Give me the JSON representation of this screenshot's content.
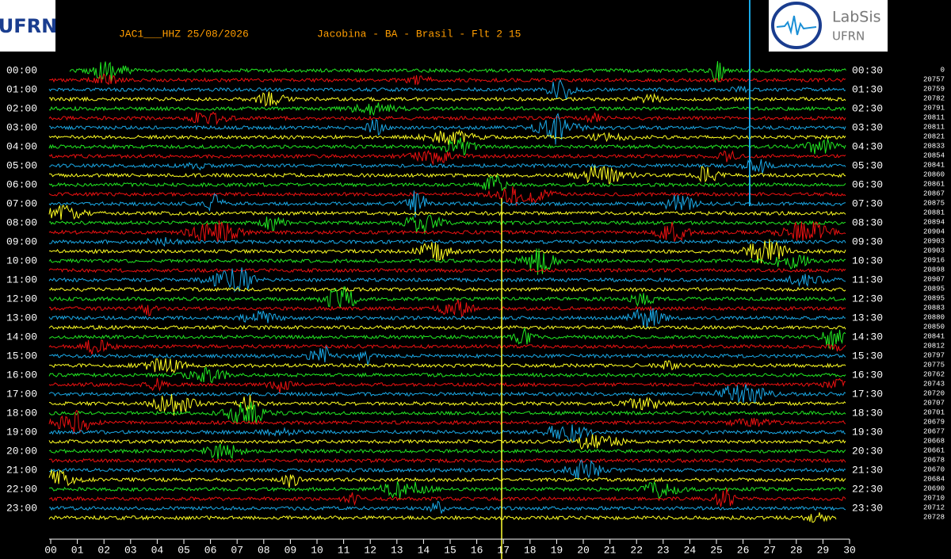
{
  "header": {
    "station": "JAC1___HHZ 25/08/2026",
    "location": "Jacobina - BA - Brasil - Flt 2 15"
  },
  "logos": {
    "left": "UFRN",
    "right_title": "LabSis",
    "right_subtitle": "UFRN"
  },
  "left_labels": [
    "00:00",
    "01:00",
    "02:00",
    "03:00",
    "04:00",
    "05:00",
    "06:00",
    "07:00",
    "08:00",
    "09:00",
    "10:00",
    "11:00",
    "12:00",
    "13:00",
    "14:00",
    "15:00",
    "16:00",
    "17:00",
    "18:00",
    "19:00",
    "20:00",
    "21:00",
    "22:00",
    "23:00"
  ],
  "right_labels": [
    "00:30",
    "01:30",
    "02:30",
    "03:30",
    "04:30",
    "05:30",
    "06:30",
    "07:30",
    "08:30",
    "09:30",
    "10:30",
    "11:30",
    "12:30",
    "13:30",
    "14:30",
    "15:30",
    "16:30",
    "17:30",
    "18:30",
    "19:30",
    "20:30",
    "21:30",
    "22:30",
    "23:30"
  ],
  "counts": [
    0,
    20757,
    20759,
    20782,
    20791,
    20811,
    20811,
    20821,
    20833,
    20854,
    20841,
    20860,
    20861,
    20867,
    20875,
    20881,
    20894,
    20904,
    20903,
    20903,
    20916,
    20898,
    20907,
    20895,
    20895,
    20883,
    20880,
    20850,
    20841,
    20812,
    20797,
    20775,
    20762,
    20743,
    20720,
    20707,
    20701,
    20679,
    20677,
    20668,
    20661,
    20678,
    20670,
    20684,
    20690,
    20710,
    20712,
    20728
  ],
  "x_ticks": [
    "00",
    "01",
    "02",
    "03",
    "04",
    "05",
    "06",
    "07",
    "08",
    "09",
    "10",
    "11",
    "12",
    "13",
    "14",
    "15",
    "16",
    "17",
    "18",
    "19",
    "20",
    "21",
    "22",
    "23",
    "24",
    "25",
    "26",
    "27",
    "28",
    "29",
    "30"
  ]
}
